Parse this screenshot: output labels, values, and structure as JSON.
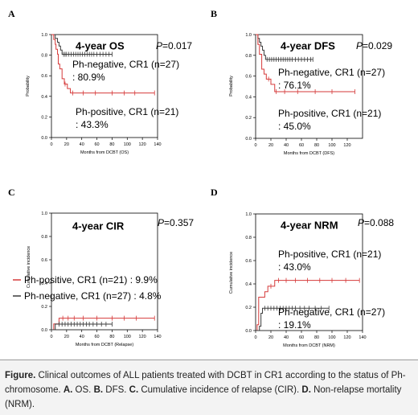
{
  "panels": [
    {
      "letter": "A",
      "chart_data": {
        "type": "line",
        "title": "4-year OS",
        "p_value": "=0.017",
        "xlabel": "Months from DCBT (OS)",
        "ylabel": "Probability",
        "xlim": [
          0,
          140
        ],
        "ylim": [
          0,
          1.0
        ],
        "x_ticks": [
          0,
          20,
          40,
          60,
          80,
          100,
          120,
          140
        ],
        "y_ticks": [
          0.0,
          0.2,
          0.4,
          0.6,
          0.8,
          1.0
        ],
        "y_tick_labels": [
          "0.0",
          "0.2",
          "0.4",
          "0.6",
          "0.8",
          "1.0"
        ],
        "series": [
          {
            "color": "#3a3a3a",
            "steps": [
              [
                0,
                1.0
              ],
              [
                5,
                0.963
              ],
              [
                8,
                0.926
              ],
              [
                10,
                0.889
              ],
              [
                12,
                0.85
              ],
              [
                14,
                0.809
              ],
              [
                80,
                0.809
              ]
            ],
            "censor_x": [
              16,
              18,
              20,
              23,
              26,
              29,
              32,
              35,
              38,
              41,
              44,
              47,
              50,
              53,
              56,
              60,
              64,
              68,
              72,
              76,
              80
            ]
          },
          {
            "color": "#d63a3a",
            "steps": [
              [
                0,
                1.0
              ],
              [
                3,
                0.952
              ],
              [
                5,
                0.905
              ],
              [
                6,
                0.857
              ],
              [
                8,
                0.81
              ],
              [
                9,
                0.714
              ],
              [
                11,
                0.667
              ],
              [
                14,
                0.571
              ],
              [
                17,
                0.52
              ],
              [
                21,
                0.476
              ],
              [
                25,
                0.433
              ],
              [
                136,
                0.433
              ]
            ],
            "censor_x": [
              18,
              28,
              42,
              58,
              80,
              96,
              110,
              136
            ]
          }
        ],
        "annotations": [
          {
            "line1": "Ph-negative, CR1 (n=27)",
            "line2": ": 80.9%"
          },
          {
            "line1": "Ph-positive, CR1 (n=21)",
            "line2": ": 43.3%"
          }
        ]
      }
    },
    {
      "letter": "B",
      "chart_data": {
        "type": "line",
        "title": "4-year DFS",
        "p_value": "=0.029",
        "xlabel": "Months from DCBT (DFS)",
        "ylabel": "Probability",
        "xlim": [
          0,
          140
        ],
        "ylim": [
          0,
          1.0
        ],
        "x_ticks": [
          0,
          20,
          40,
          60,
          80,
          100,
          120
        ],
        "y_ticks": [
          0.0,
          0.2,
          0.4,
          0.6,
          0.8,
          1.0
        ],
        "y_tick_labels": [
          "0.0",
          "0.2",
          "0.4",
          "0.6",
          "0.8",
          "1.0"
        ],
        "series": [
          {
            "color": "#3a3a3a",
            "steps": [
              [
                0,
                1.0
              ],
              [
                3,
                0.963
              ],
              [
                5,
                0.926
              ],
              [
                7,
                0.889
              ],
              [
                9,
                0.85
              ],
              [
                11,
                0.8
              ],
              [
                13,
                0.761
              ],
              [
                75,
                0.761
              ]
            ],
            "censor_x": [
              15,
              18,
              21,
              24,
              27,
              30,
              33,
              36,
              39,
              42,
              45,
              48,
              52,
              56,
              60,
              64,
              68,
              72,
              75
            ]
          },
          {
            "color": "#d63a3a",
            "steps": [
              [
                0,
                1.0
              ],
              [
                3,
                0.905
              ],
              [
                5,
                0.81
              ],
              [
                8,
                0.667
              ],
              [
                11,
                0.619
              ],
              [
                14,
                0.571
              ],
              [
                20,
                0.52
              ],
              [
                25,
                0.45
              ],
              [
                130,
                0.45
              ]
            ],
            "censor_x": [
              17,
              27,
              38,
              55,
              78,
              100,
              130
            ]
          }
        ],
        "annotations": [
          {
            "line1": "Ph-negative, CR1 (n=27)",
            "line2": ": 76.1%"
          },
          {
            "line1": "Ph-positive, CR1 (n=21)",
            "line2": ": 45.0%"
          }
        ]
      }
    },
    {
      "letter": "C",
      "chart_data": {
        "type": "line",
        "title": "4-year CIR",
        "p_value": "=0.357",
        "xlabel": "Months from DCBT (Relapse)",
        "ylabel": "Cumulative incidence",
        "xlim": [
          0,
          140
        ],
        "ylim": [
          0,
          1.0
        ],
        "x_ticks": [
          0,
          20,
          40,
          60,
          80,
          100,
          120,
          140
        ],
        "y_ticks": [
          0.0,
          0.2,
          0.4,
          0.6,
          0.8,
          1.0
        ],
        "y_tick_labels": [
          "0.0",
          "0.2",
          "0.4",
          "0.6",
          "0.8",
          "1.0"
        ],
        "series": [
          {
            "color": "#d63a3a",
            "steps": [
              [
                0,
                0
              ],
              [
                3,
                0.05
              ],
              [
                10,
                0.099
              ],
              [
                136,
                0.099
              ]
            ],
            "censor_x": [
              15,
              22,
              30,
              42,
              60,
              80,
              96,
              112,
              136
            ]
          },
          {
            "color": "#3a3a3a",
            "steps": [
              [
                0,
                0
              ],
              [
                5,
                0.048
              ],
              [
                80,
                0.048
              ]
            ],
            "censor_x": [
              10,
              14,
              18,
              22,
              26,
              30,
              34,
              38,
              42,
              46,
              50,
              55,
              60,
              66,
              72,
              80
            ]
          }
        ],
        "legend": [
          {
            "color": "#d63a3a",
            "label": "Ph-positive, CR1 (n=21) : 9.9%"
          },
          {
            "color": "#3a3a3a",
            "label": "Ph-negative, CR1 (n=27) : 4.8%"
          }
        ]
      }
    },
    {
      "letter": "D",
      "chart_data": {
        "type": "line",
        "title": "4-year NRM",
        "p_value": "=0.088",
        "xlabel": "Months from DCBT (NRM)",
        "ylabel": "Cumulative incidence",
        "xlim": [
          0,
          140
        ],
        "ylim": [
          0,
          1.0
        ],
        "x_ticks": [
          0,
          20,
          40,
          60,
          80,
          100,
          120,
          140
        ],
        "y_ticks": [
          0.0,
          0.2,
          0.4,
          0.6,
          0.8,
          1.0
        ],
        "y_tick_labels": [
          "0.0",
          "0.2",
          "0.4",
          "0.6",
          "0.8",
          "1.0"
        ],
        "series": [
          {
            "color": "#d63a3a",
            "steps": [
              [
                0,
                0
              ],
              [
                2,
                0.05
              ],
              [
                4,
                0.286
              ],
              [
                12,
                0.333
              ],
              [
                16,
                0.38
              ],
              [
                25,
                0.43
              ],
              [
                136,
                0.43
              ]
            ],
            "censor_x": [
              20,
              30,
              40,
              52,
              68,
              84,
              100,
              118,
              136
            ]
          },
          {
            "color": "#3a3a3a",
            "steps": [
              [
                0,
                0
              ],
              [
                5,
                0.037
              ],
              [
                7,
                0.148
              ],
              [
                9,
                0.191
              ],
              [
                96,
                0.191
              ]
            ],
            "censor_x": [
              12,
              16,
              20,
              24,
              28,
              32,
              36,
              40,
              44,
              48,
              52,
              58,
              64,
              70,
              78,
              86,
              96
            ]
          }
        ],
        "annotations": [
          {
            "line1": "Ph-positive, CR1 (n=21)",
            "line2": ": 43.0%"
          },
          {
            "line1": "Ph-negative, CR1 (n=27)",
            "line2": ": 19.1%"
          }
        ]
      }
    }
  ],
  "caption": {
    "figure_label": "Figure.",
    "intro": " Clinical outcomes of ALL patients treated with DCBT in CR1 according to the status of Ph-chromosome. ",
    "parts": [
      {
        "letter": "A.",
        "text": " OS. "
      },
      {
        "letter": "B.",
        "text": " DFS. "
      },
      {
        "letter": "C.",
        "text": " Cumulative incidence of relapse (CIR). "
      },
      {
        "letter": "D.",
        "text": " Non-relapse mortality (NRM)."
      }
    ]
  }
}
